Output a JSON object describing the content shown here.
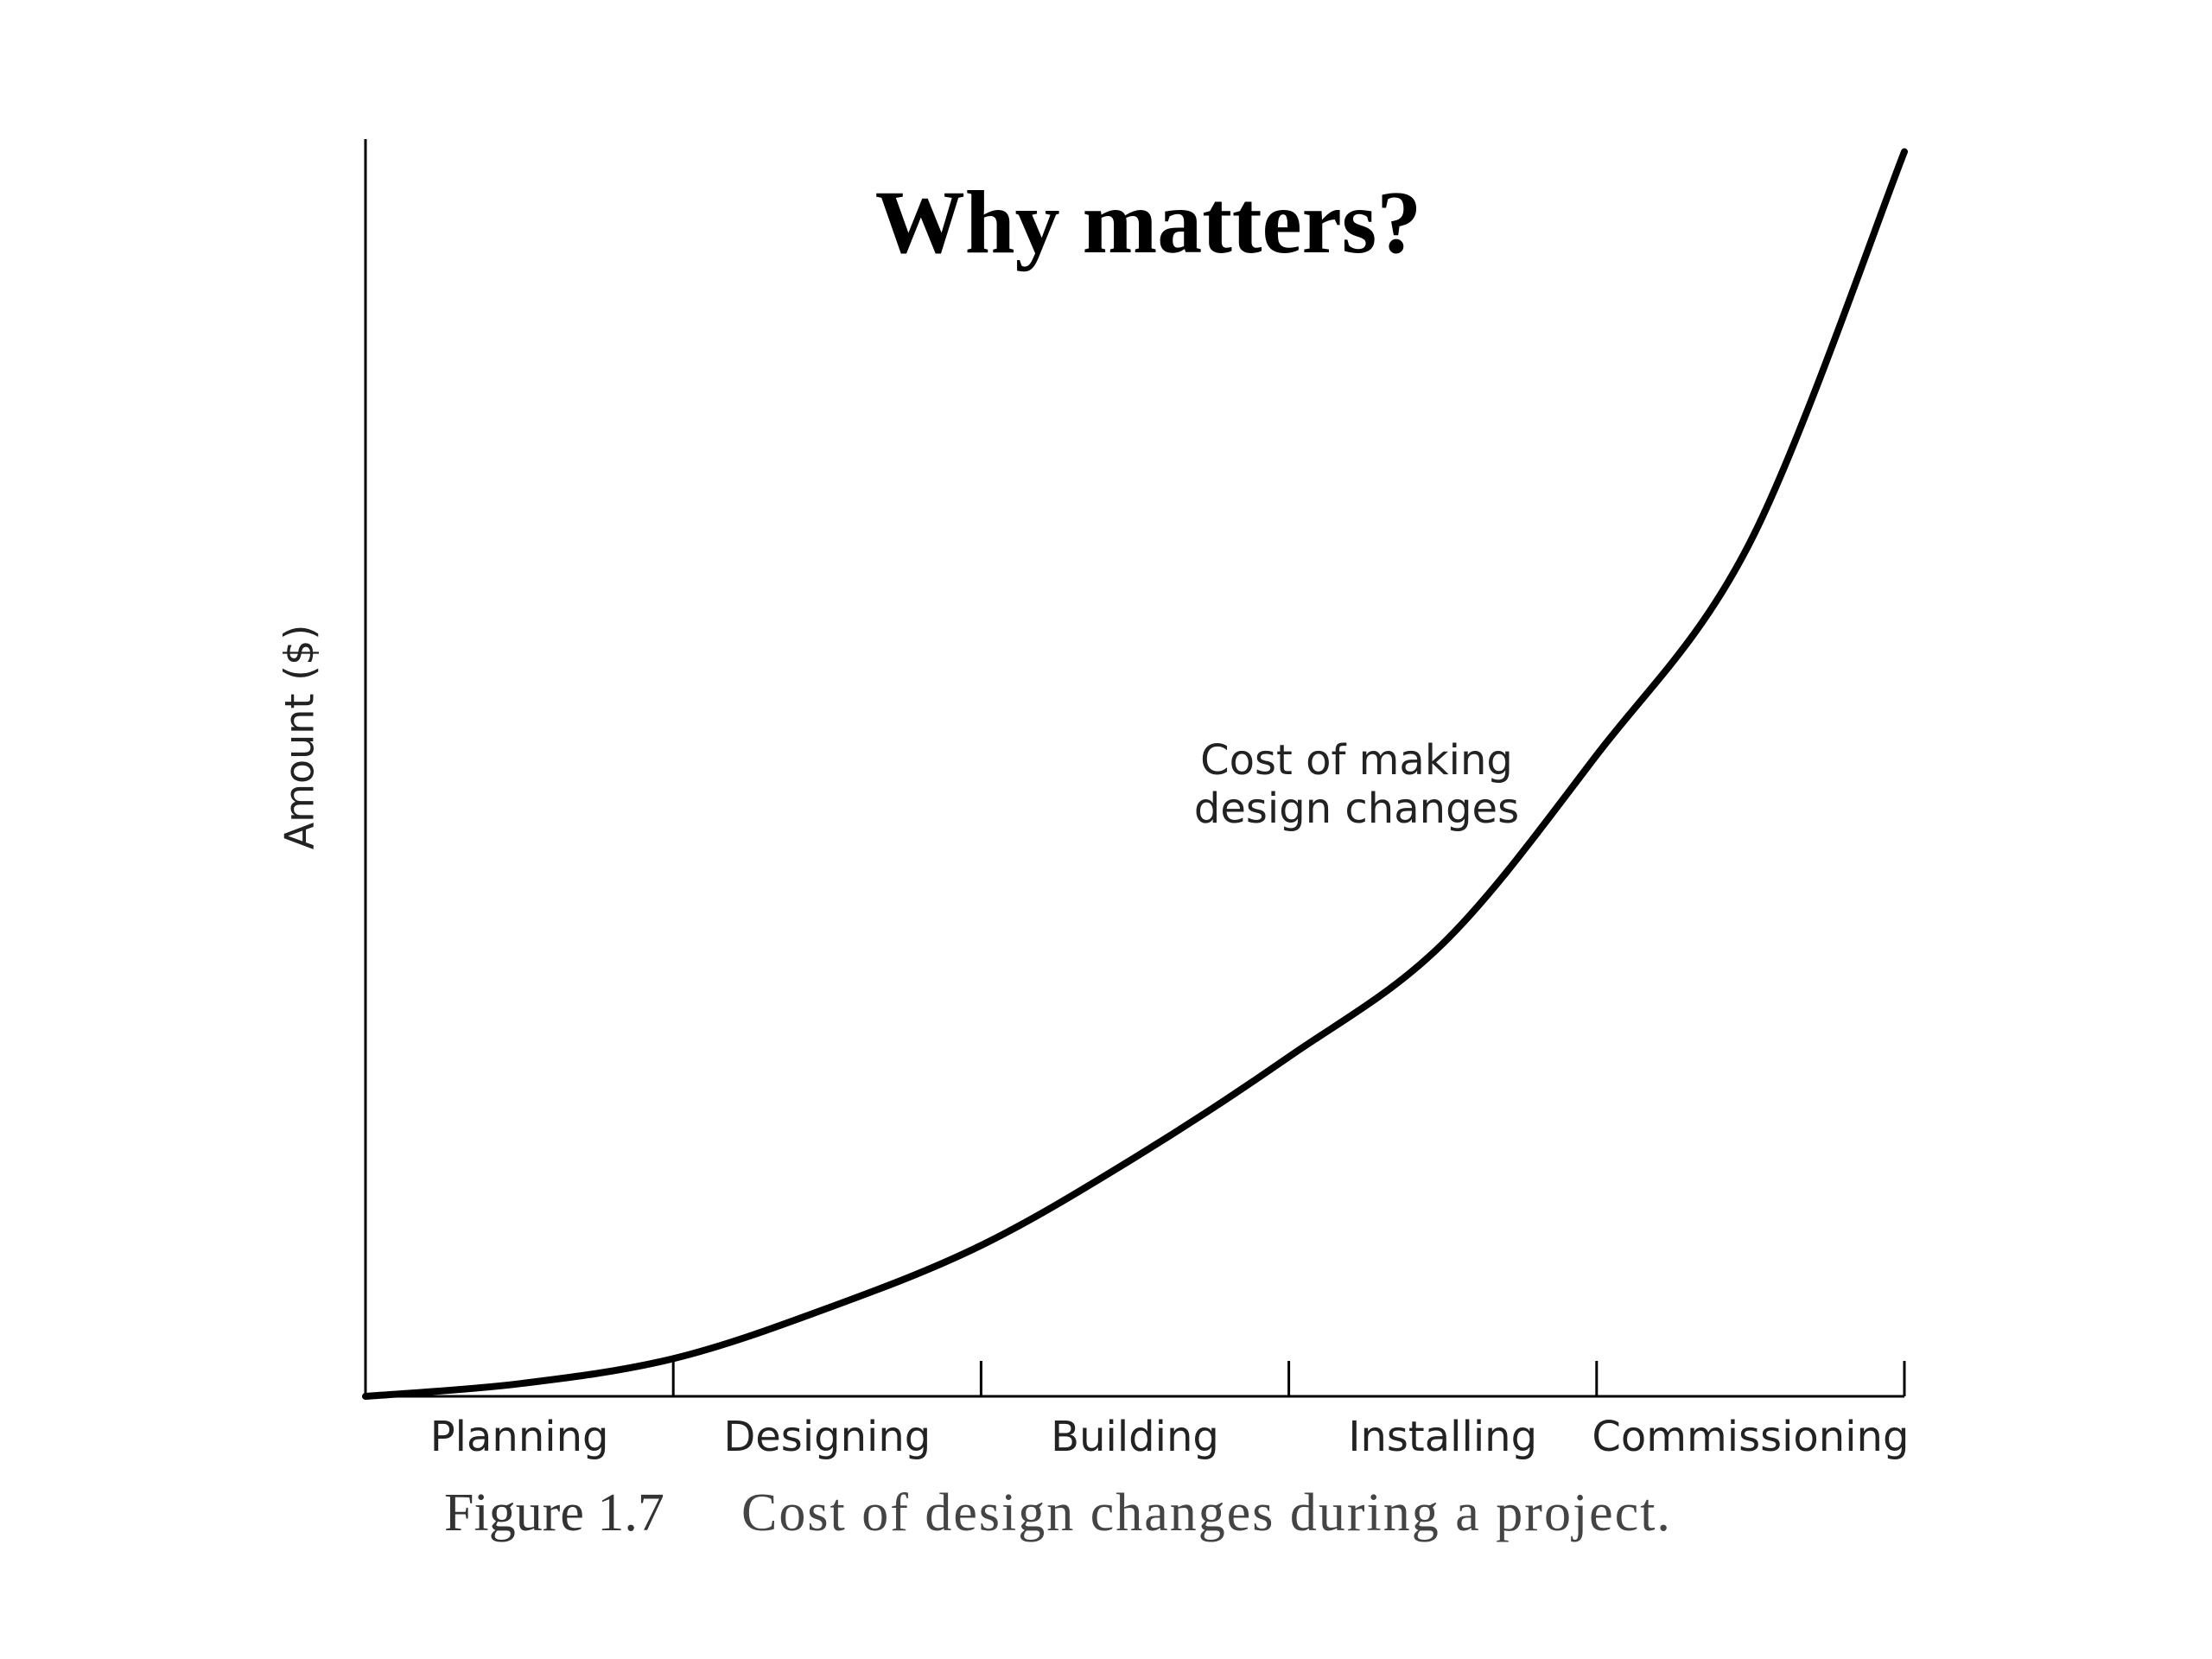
{
  "chart_data": {
    "type": "line",
    "title": "Why matters?",
    "y_label": "Amount ($)",
    "annotation": [
      "Cost of making",
      "design changes"
    ],
    "categories": [
      "Planning",
      "Designing",
      "Building",
      "Installing",
      "Commissioning"
    ],
    "x": [
      0,
      0.5,
      1,
      1.5,
      2,
      2.5,
      3,
      3.5,
      4,
      4.5,
      5
    ],
    "values": [
      0,
      1,
      3,
      7,
      12,
      19,
      27,
      36,
      51,
      68,
      99
    ],
    "color": "#000000",
    "xlim": [
      0,
      5
    ],
    "xticks": [
      1,
      2,
      3,
      4,
      5
    ],
    "ylim": [
      0,
      100
    ],
    "caption": {
      "label": "Figure 1.7",
      "text": "Cost of design changes during a project."
    }
  }
}
